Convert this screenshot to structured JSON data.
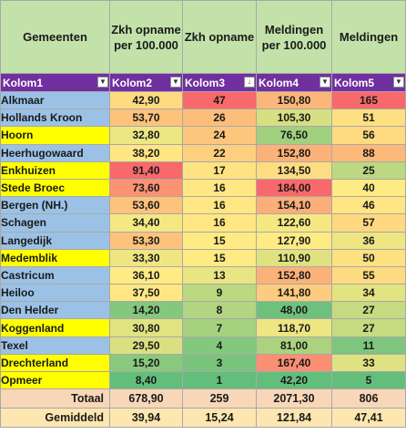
{
  "headers": [
    "Gemeenten",
    "Zkh opname per 100.000",
    "Zkh opname",
    "Meldingen per 100.000",
    "Meldingen"
  ],
  "filter_labels": [
    "Kolom1",
    "Kolom2",
    "Kolom3",
    "Kolom4",
    "Kolom5"
  ],
  "rows": [
    {
      "name": "Alkmaar",
      "zkh_per": "42,90",
      "zkh": "47",
      "meld_per": "150,80",
      "meld": "165"
    },
    {
      "name": "Hollands Kroon",
      "zkh_per": "53,70",
      "zkh": "26",
      "meld_per": "105,30",
      "meld": "51"
    },
    {
      "name": "Hoorn",
      "zkh_per": "32,80",
      "zkh": "24",
      "meld_per": "76,50",
      "meld": "56"
    },
    {
      "name": "Heerhugowaard",
      "zkh_per": "38,20",
      "zkh": "22",
      "meld_per": "152,80",
      "meld": "88"
    },
    {
      "name": "Enkhuizen",
      "zkh_per": "91,40",
      "zkh": "17",
      "meld_per": "134,50",
      "meld": "25"
    },
    {
      "name": "Stede Broec",
      "zkh_per": "73,60",
      "zkh": "16",
      "meld_per": "184,00",
      "meld": "40"
    },
    {
      "name": "Bergen (NH.)",
      "zkh_per": "53,60",
      "zkh": "16",
      "meld_per": "154,10",
      "meld": "46"
    },
    {
      "name": "Schagen",
      "zkh_per": "34,40",
      "zkh": "16",
      "meld_per": "122,60",
      "meld": "57"
    },
    {
      "name": "Langedijk",
      "zkh_per": "53,30",
      "zkh": "15",
      "meld_per": "127,90",
      "meld": "36"
    },
    {
      "name": "Medemblik",
      "zkh_per": "33,30",
      "zkh": "15",
      "meld_per": "110,90",
      "meld": "50"
    },
    {
      "name": "Castricum",
      "zkh_per": "36,10",
      "zkh": "13",
      "meld_per": "152,80",
      "meld": "55"
    },
    {
      "name": "Heiloo",
      "zkh_per": "37,50",
      "zkh": "9",
      "meld_per": "141,80",
      "meld": "34"
    },
    {
      "name": "Den Helder",
      "zkh_per": "14,20",
      "zkh": "8",
      "meld_per": "48,00",
      "meld": "27"
    },
    {
      "name": "Koggenland",
      "zkh_per": "30,80",
      "zkh": "7",
      "meld_per": "118,70",
      "meld": "27"
    },
    {
      "name": "Texel",
      "zkh_per": "29,50",
      "zkh": "4",
      "meld_per": "81,00",
      "meld": "11"
    },
    {
      "name": "Drechterland",
      "zkh_per": "15,20",
      "zkh": "3",
      "meld_per": "167,40",
      "meld": "33"
    },
    {
      "name": "Opmeer",
      "zkh_per": "8,40",
      "zkh": "1",
      "meld_per": "42,20",
      "meld": "5"
    }
  ],
  "totals": {
    "label": "Totaal",
    "zkh_per": "678,90",
    "zkh": "259",
    "meld_per": "2071,30",
    "meld": "806"
  },
  "averages": {
    "label": "Gemiddeld",
    "zkh_per": "39,94",
    "zkh": "15,24",
    "meld_per": "121,84",
    "meld": "47,41"
  },
  "colors": {
    "header_bg": "#c3e2aa",
    "filter_bg": "#7030a0",
    "name_blue": "#9bc2e6",
    "name_yellow": "#ffff00",
    "totals_bg": "#f8d7b8",
    "averages_bg": "#fde6b0",
    "scale_low": "#63be7b",
    "scale_mid": "#ffeb84",
    "scale_high": "#f8696b"
  },
  "name_highlight": [
    "blue",
    "blue",
    "yellow",
    "blue",
    "yellow",
    "yellow",
    "blue",
    "blue",
    "blue",
    "yellow",
    "blue",
    "blue",
    "blue",
    "yellow",
    "blue",
    "yellow",
    "yellow"
  ],
  "sort_indicator": {
    "column": 2,
    "glyph": "↓"
  }
}
